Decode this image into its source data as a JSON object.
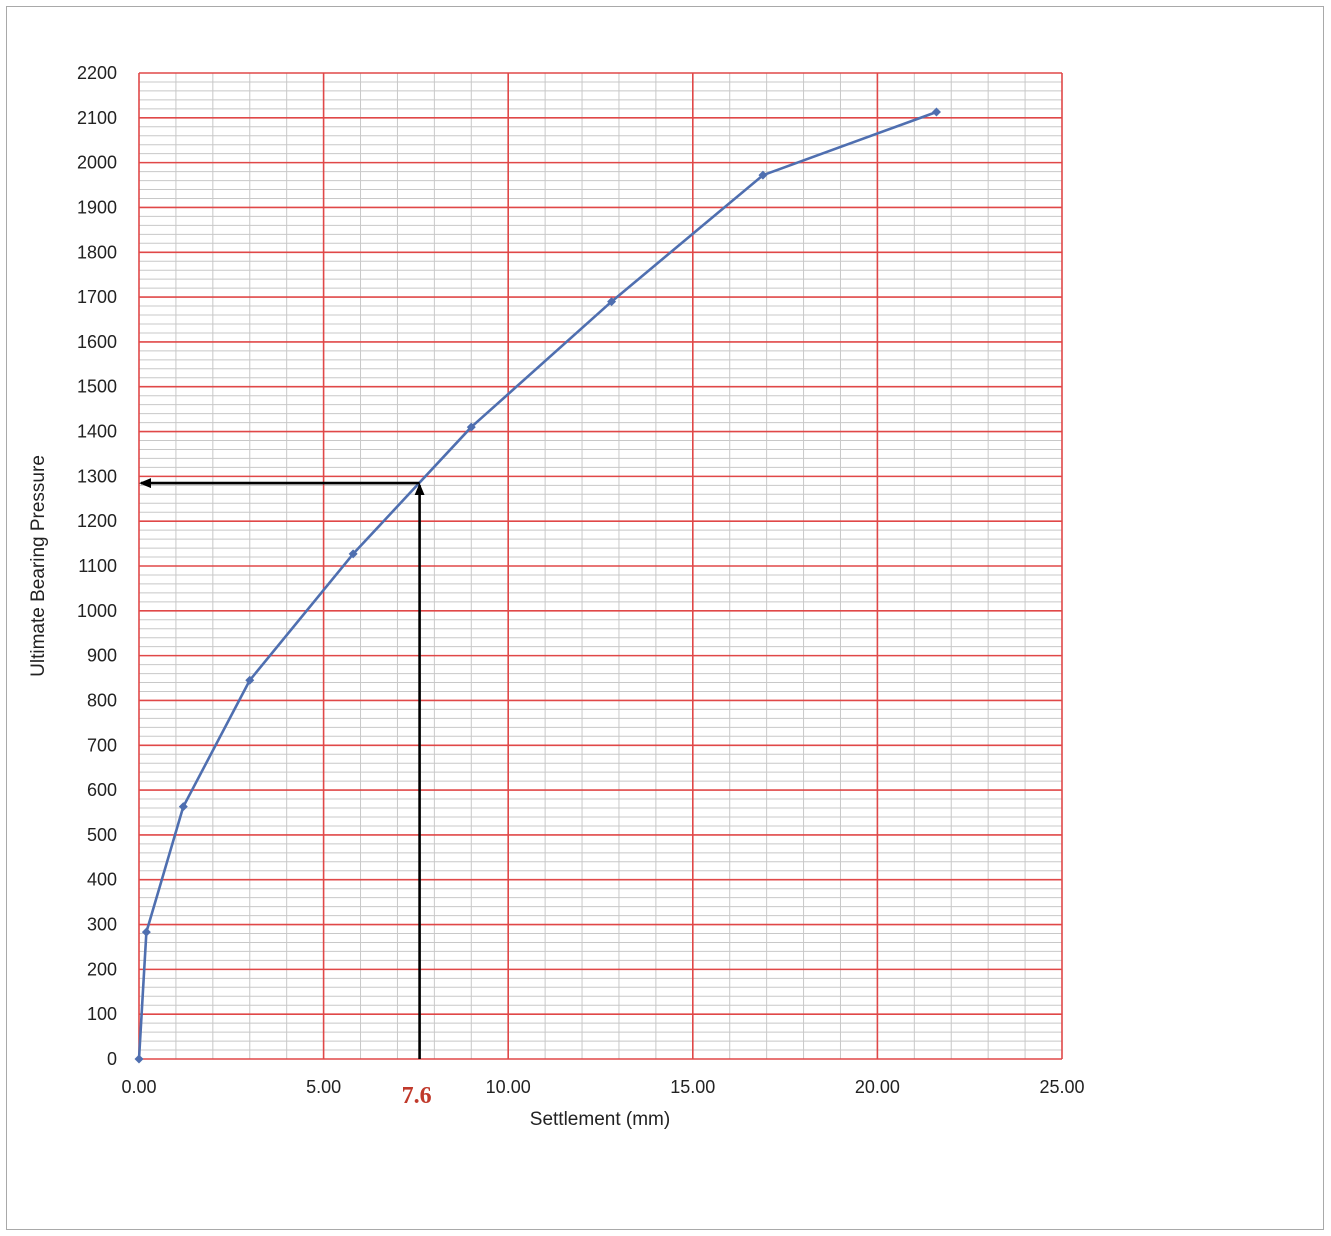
{
  "chart_data": {
    "type": "line",
    "xlabel": "Settlement (mm)",
    "ylabel": "Ultimate Bearing Pressure",
    "xlim": [
      0,
      25
    ],
    "ylim": [
      0,
      2200
    ],
    "x_ticks": [
      "0.00",
      "5.00",
      "10.00",
      "15.00",
      "20.00",
      "25.00"
    ],
    "y_ticks": [
      "0",
      "100",
      "200",
      "300",
      "400",
      "500",
      "600",
      "700",
      "800",
      "900",
      "1000",
      "1100",
      "1200",
      "1300",
      "1400",
      "1500",
      "1600",
      "1700",
      "1800",
      "1900",
      "2000",
      "2100",
      "2200"
    ],
    "grid": true,
    "series": [
      {
        "x": [
          0.0,
          0.2,
          1.2,
          3.0,
          5.8,
          9.0,
          12.8,
          16.9,
          21.6
        ],
        "y": [
          0,
          283,
          563,
          845,
          1127,
          1410,
          1690,
          1972,
          2113
        ]
      }
    ],
    "annotation": {
      "x": 7.6,
      "y": 1285,
      "label": "7.6"
    },
    "colors": {
      "series": "#4f6fb0",
      "major_grid": "#e04848",
      "minor_grid": "#c8c8c8",
      "arrow": "#000000",
      "annotation_label": "#c0392b"
    }
  }
}
